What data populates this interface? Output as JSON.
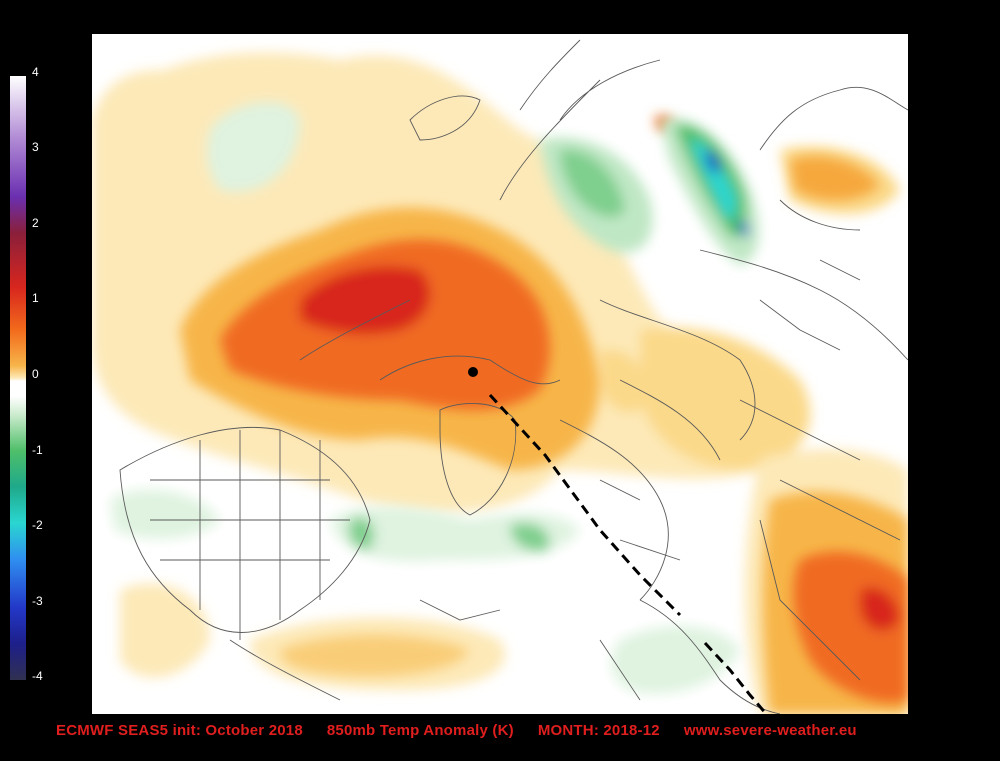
{
  "colorbar": {
    "ticks": [
      "4",
      "3",
      "2",
      "1",
      "0",
      "-1",
      "-2",
      "-3",
      "-4"
    ],
    "range": [
      -4,
      4
    ]
  },
  "footer": {
    "model": "ECMWF SEAS5 init: October 2018",
    "variable": "850mb Temp Anomaly (K)",
    "month": "MONTH: 2018-12",
    "site": "www.severe-weather.eu"
  },
  "map": {
    "type": "polar-stereographic anomaly map",
    "colors": {
      "strong_warm": "#d8261e",
      "warm": "#f26a1c",
      "mild_warm": "#f7c25a",
      "weak_warm": "#fde9b8",
      "weak_cold": "#cdeccf",
      "cold": "#4fbf6a",
      "very_cold": "#1f56c8"
    }
  }
}
